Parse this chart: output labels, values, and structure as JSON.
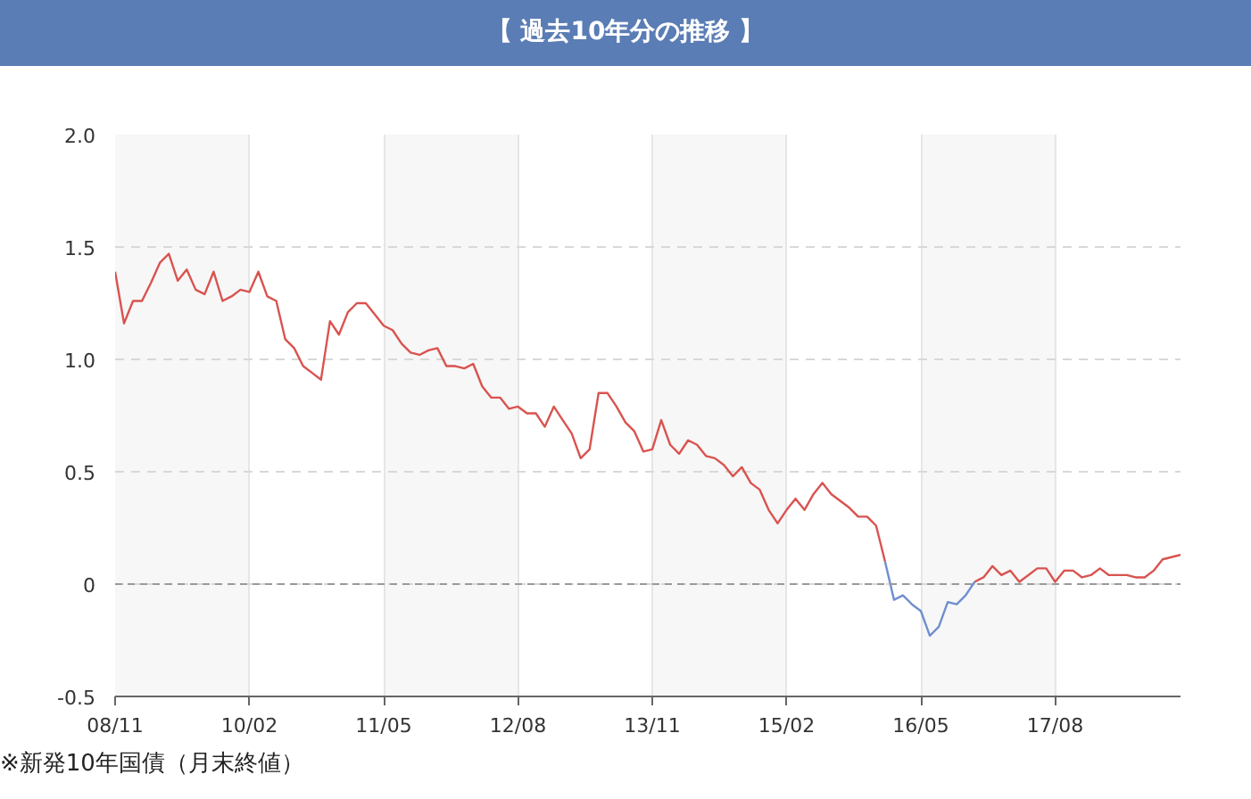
{
  "chart_data": {
    "type": "line",
    "title": "【 過去10年分の推移 】",
    "annotations": [
      "※新発10年国債（月末終値）"
    ],
    "x": [
      "2008-11",
      "2008-12",
      "2009-01",
      "2009-02",
      "2009-03",
      "2009-04",
      "2009-05",
      "2009-06",
      "2009-07",
      "2009-08",
      "2009-09",
      "2009-10",
      "2009-11",
      "2009-12",
      "2010-01",
      "2010-02",
      "2010-03",
      "2010-04",
      "2010-05",
      "2010-06",
      "2010-07",
      "2010-08",
      "2010-09",
      "2010-10",
      "2010-11",
      "2010-12",
      "2011-01",
      "2011-02",
      "2011-03",
      "2011-04",
      "2011-05",
      "2011-06",
      "2011-07",
      "2011-08",
      "2011-09",
      "2011-10",
      "2011-11",
      "2011-12",
      "2012-01",
      "2012-02",
      "2012-03",
      "2012-04",
      "2012-05",
      "2012-06",
      "2012-07",
      "2012-08",
      "2012-09",
      "2012-10",
      "2012-11",
      "2012-12",
      "2013-01",
      "2013-02",
      "2013-03",
      "2013-04",
      "2013-05",
      "2013-06",
      "2013-07",
      "2013-08",
      "2013-09",
      "2013-10",
      "2013-11",
      "2013-12",
      "2014-01",
      "2014-02",
      "2014-03",
      "2014-04",
      "2014-05",
      "2014-06",
      "2014-07",
      "2014-08",
      "2014-09",
      "2014-10",
      "2014-11",
      "2014-12",
      "2015-01",
      "2015-02",
      "2015-03",
      "2015-04",
      "2015-05",
      "2015-06",
      "2015-07",
      "2015-08",
      "2015-09",
      "2015-10",
      "2015-11",
      "2015-12",
      "2016-01",
      "2016-02",
      "2016-03",
      "2016-04",
      "2016-05",
      "2016-06",
      "2016-07",
      "2016-08",
      "2016-09",
      "2016-10",
      "2016-11",
      "2016-12",
      "2017-01",
      "2017-02",
      "2017-03",
      "2017-04",
      "2017-05",
      "2017-06",
      "2017-07",
      "2017-08",
      "2017-09",
      "2017-10",
      "2017-11",
      "2017-12",
      "2018-01",
      "2018-02",
      "2018-03",
      "2018-04",
      "2018-05",
      "2018-06",
      "2018-07",
      "2018-08",
      "2018-09",
      "2018-10"
    ],
    "series": [
      {
        "color": "#d9534f",
        "values": [
          1.39,
          1.16,
          1.26,
          1.26,
          1.34,
          1.43,
          1.47,
          1.35,
          1.4,
          1.31,
          1.29,
          1.39,
          1.26,
          1.28,
          1.31,
          1.3,
          1.39,
          1.28,
          1.26,
          1.09,
          1.05,
          0.97,
          0.94,
          0.91,
          1.17,
          1.11,
          1.21,
          1.25,
          1.25,
          1.2,
          1.15,
          1.13,
          1.07,
          1.03,
          1.02,
          1.04,
          1.05,
          0.97,
          0.97,
          0.96,
          0.98,
          0.88,
          0.83,
          0.83,
          0.78,
          0.79,
          0.76,
          0.76,
          0.7,
          0.79,
          0.73,
          0.67,
          0.56,
          0.6,
          0.85,
          0.85,
          0.79,
          0.72,
          0.68,
          0.59,
          0.6,
          0.73,
          0.62,
          0.58,
          0.64,
          0.62,
          0.57,
          0.56,
          0.53,
          0.48,
          0.52,
          0.45,
          0.42,
          0.33,
          0.27,
          0.33,
          0.38,
          0.33,
          0.4,
          0.45,
          0.4,
          0.37,
          0.34,
          0.3,
          0.3,
          0.26,
          0.1,
          null,
          null,
          null,
          null,
          null,
          null,
          null,
          null,
          null,
          0.01,
          0.03,
          0.08,
          0.04,
          0.06,
          0.01,
          0.04,
          0.07,
          0.07,
          0.01,
          0.06,
          0.06,
          0.03,
          0.04,
          0.07,
          0.04,
          0.04,
          0.04,
          0.03,
          0.03,
          0.06,
          0.11,
          0.12,
          0.13
        ]
      },
      {
        "color": "#6f8fcf",
        "values": [
          null,
          null,
          null,
          null,
          null,
          null,
          null,
          null,
          null,
          null,
          null,
          null,
          null,
          null,
          null,
          null,
          null,
          null,
          null,
          null,
          null,
          null,
          null,
          null,
          null,
          null,
          null,
          null,
          null,
          null,
          null,
          null,
          null,
          null,
          null,
          null,
          null,
          null,
          null,
          null,
          null,
          null,
          null,
          null,
          null,
          null,
          null,
          null,
          null,
          null,
          null,
          null,
          null,
          null,
          null,
          null,
          null,
          null,
          null,
          null,
          null,
          null,
          null,
          null,
          null,
          null,
          null,
          null,
          null,
          null,
          null,
          null,
          null,
          null,
          null,
          null,
          null,
          null,
          null,
          null,
          null,
          null,
          null,
          null,
          null,
          null,
          0.1,
          -0.07,
          -0.05,
          -0.09,
          -0.12,
          -0.23,
          -0.19,
          -0.08,
          -0.09,
          -0.05,
          0.01,
          null,
          null,
          null,
          null,
          null,
          null,
          null,
          null,
          null,
          null,
          null,
          null,
          null,
          null,
          null,
          null,
          null,
          null,
          null,
          null,
          null,
          null,
          null
        ]
      }
    ],
    "xlim": [
      "2008-11",
      "2018-10"
    ],
    "xticks": [
      {
        "value": "2008-11",
        "label": "08/11"
      },
      {
        "value": "2010-02",
        "label": "10/02"
      },
      {
        "value": "2011-05",
        "label": "11/05"
      },
      {
        "value": "2012-08",
        "label": "12/08"
      },
      {
        "value": "2013-11",
        "label": "13/11"
      },
      {
        "value": "2015-02",
        "label": "15/02"
      },
      {
        "value": "2016-05",
        "label": "16/05"
      },
      {
        "value": "2017-08",
        "label": "17/08"
      }
    ],
    "ylim": [
      -0.5,
      2.0
    ],
    "yticks": [
      -0.5,
      0,
      0.5,
      {
        "value": 1.0,
        "label": "1.0"
      },
      1.5,
      {
        "value": 2.0,
        "label": "2.0"
      }
    ],
    "grid": true,
    "ref_lines": [
      {
        "axis": "y",
        "value": 0,
        "color": "#999999",
        "line_style": "dashed"
      }
    ],
    "bands": [
      {
        "axis": "x",
        "from": "2008-11",
        "to": "2010-02",
        "color": "#f7f7f7"
      },
      {
        "axis": "x",
        "from": "2011-05",
        "to": "2012-08",
        "color": "#f7f7f7"
      },
      {
        "axis": "x",
        "from": "2013-11",
        "to": "2015-02",
        "color": "#f7f7f7"
      },
      {
        "axis": "x",
        "from": "2016-05",
        "to": "2017-08",
        "color": "#f7f7f7"
      }
    ]
  }
}
